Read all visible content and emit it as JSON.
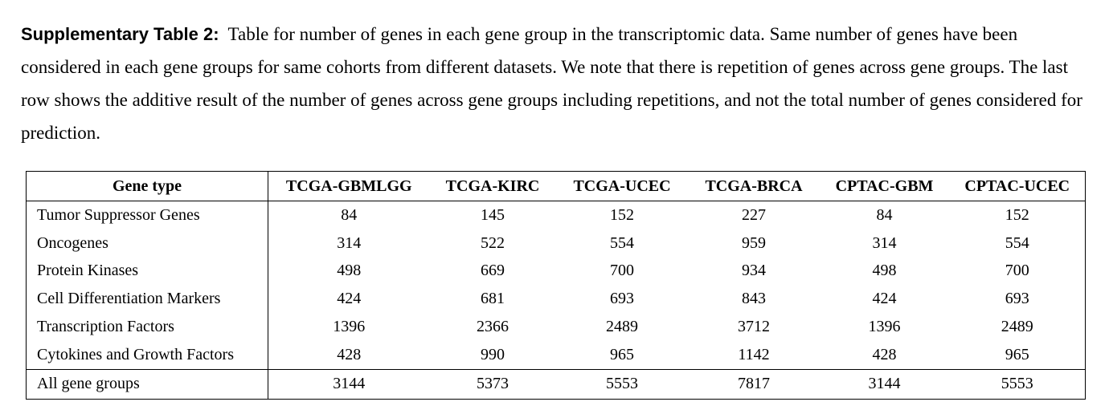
{
  "caption": {
    "label": "Supplementary Table 2:",
    "text": "Table for number of genes in each gene group in the transcriptomic data. Same number of genes have been considered in each gene groups for same cohorts from different datasets. We note that there is repetition of genes across gene groups. The last row shows the additive result of the number of genes across gene groups including repetitions, and not the total number of genes considered for prediction."
  },
  "table": {
    "headers": [
      "Gene type",
      "TCGA-GBMLGG",
      "TCGA-KIRC",
      "TCGA-UCEC",
      "TCGA-BRCA",
      "CPTAC-GBM",
      "CPTAC-UCEC"
    ],
    "rows": [
      [
        "Tumor Suppressor Genes",
        "84",
        "145",
        "152",
        "227",
        "84",
        "152"
      ],
      [
        "Oncogenes",
        "314",
        "522",
        "554",
        "959",
        "314",
        "554"
      ],
      [
        "Protein Kinases",
        "498",
        "669",
        "700",
        "934",
        "498",
        "700"
      ],
      [
        "Cell Differentiation Markers",
        "424",
        "681",
        "693",
        "843",
        "424",
        "693"
      ],
      [
        "Transcription Factors",
        "1396",
        "2366",
        "2489",
        "3712",
        "1396",
        "2489"
      ],
      [
        "Cytokines and Growth Factors",
        "428",
        "990",
        "965",
        "1142",
        "428",
        "965"
      ]
    ],
    "total_row": [
      "All gene groups",
      "3144",
      "5373",
      "5553",
      "7817",
      "3144",
      "5553"
    ]
  }
}
